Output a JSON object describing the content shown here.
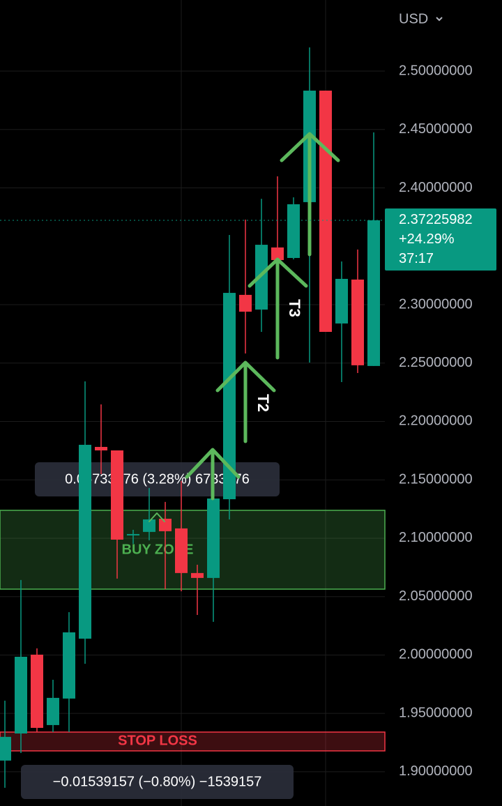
{
  "chart_data": {
    "type": "candlestick",
    "currency": "USD",
    "ylim": [
      1.8707,
      2.5609
    ],
    "yticks": [
      {
        "value": 1.9,
        "label": "1.90000000"
      },
      {
        "value": 1.95,
        "label": "1.95000000"
      },
      {
        "value": 2.0,
        "label": "2.00000000"
      },
      {
        "value": 2.05,
        "label": "2.05000000"
      },
      {
        "value": 2.1,
        "label": "2.10000000"
      },
      {
        "value": 2.15,
        "label": "2.15000000"
      },
      {
        "value": 2.2,
        "label": "2.20000000"
      },
      {
        "value": 2.25,
        "label": "2.25000000"
      },
      {
        "value": 2.3,
        "label": "2.30000000"
      },
      {
        "value": 2.4,
        "label": "2.40000000"
      },
      {
        "value": 2.45,
        "label": "2.45000000"
      },
      {
        "value": 2.5,
        "label": "2.50000000"
      }
    ],
    "grid": true,
    "up_color": "#089981",
    "down_color": "#f23645",
    "open": [
      1.9096,
      1.9328,
      2.0003,
      1.94,
      1.9627,
      2.014,
      2.1782,
      2.1752,
      2.1024,
      2.1054,
      2.1167,
      2.1084,
      2.0702,
      2.066,
      2.1334,
      2.3084,
      2.2958,
      2.349,
      2.34,
      2.3878,
      2.4833,
      2.2839,
      2.3215,
      2.2475
    ],
    "high": [
      1.9609,
      2.0642,
      2.0057,
      1.9788,
      2.0367,
      2.2343,
      2.2146,
      2.1752,
      2.1072,
      2.143,
      2.1311,
      2.149,
      2.0773,
      2.143,
      2.3597,
      2.3728,
      2.3907,
      2.4099,
      2.3919,
      2.5203,
      2.4833,
      2.337,
      2.3472,
      2.4475
    ],
    "low": [
      1.8863,
      1.9161,
      1.934,
      1.934,
      1.934,
      1.9925,
      2.1549,
      2.0654,
      2.0952,
      2.0982,
      2.0564,
      2.0546,
      2.0343,
      2.0284,
      2.1161,
      2.2582,
      2.2767,
      2.3173,
      2.3388,
      2.2504,
      2.2767,
      2.2337,
      2.2415,
      2.2475
    ],
    "close": [
      1.9299,
      1.9985,
      1.9376,
      1.9633,
      2.0194,
      2.18,
      2.1752,
      2.0988,
      2.1036,
      2.1161,
      2.106,
      2.0702,
      2.066,
      2.134,
      2.3101,
      2.294,
      2.3513,
      2.3382,
      2.386,
      2.4833,
      2.2767,
      2.3221,
      2.2481,
      2.37225982
    ],
    "last_price": 2.37225982,
    "change": "+24.29%",
    "countdown": "37:17",
    "zones": [
      {
        "label": "BUY ZONE",
        "top": 2.1239,
        "bottom": 2.0564,
        "color": "#4caf50"
      },
      {
        "label": "STOP LOSS",
        "top": 1.934,
        "bottom": 1.9179,
        "color": "#f23645"
      }
    ],
    "annotations": [
      "T2",
      "T3"
    ],
    "measures": [
      "0.06733476 (3.28%) 6733476",
      "−0.01539157 (−0.80%) −1539157"
    ]
  }
}
